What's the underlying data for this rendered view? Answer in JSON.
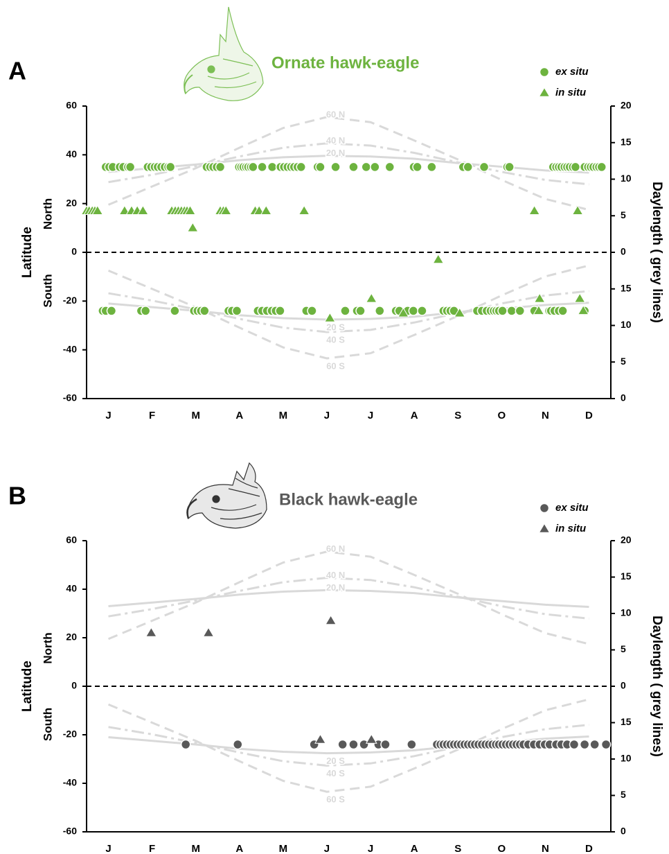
{
  "chart_data": [
    {
      "type": "scatter",
      "panel": "A",
      "title": "Ornate hawk-eagle",
      "title_color": "#6db33f",
      "y_label": "Latitude",
      "north_label": "North",
      "south_label": "South",
      "y2_label": "Daylength ( grey lines)",
      "categories": [
        "J",
        "F",
        "M",
        "A",
        "M",
        "J",
        "J",
        "A",
        "S",
        "O",
        "N",
        "D"
      ],
      "xlim": [
        0,
        12
      ],
      "ylim": [
        -60,
        60
      ],
      "yticks": [
        -60,
        -40,
        -20,
        0,
        20,
        40,
        60
      ],
      "reference_line": 0,
      "y2lim": [
        0,
        20
      ],
      "y2ticks": [
        0,
        5,
        10,
        15,
        20
      ],
      "y3lim": [
        0,
        20
      ],
      "y3ticks": [
        0,
        5,
        10,
        15
      ],
      "curves": [
        {
          "name": "60 N",
          "axis": "y2",
          "style": "dash",
          "color": "#d9d9d9",
          "values": [
            6.5,
            9,
            11.5,
            14.3,
            17,
            18.5,
            17.8,
            15.3,
            12.7,
            9.9,
            7.3,
            5.8
          ]
        },
        {
          "name": "40 N",
          "axis": "y2",
          "style": "dashdot",
          "color": "#d9d9d9",
          "values": [
            9.6,
            10.6,
            11.8,
            13.1,
            14.3,
            14.9,
            14.6,
            13.6,
            12.3,
            11,
            9.9,
            9.3
          ]
        },
        {
          "name": "20 N",
          "axis": "y2",
          "style": "solid",
          "color": "#d9d9d9",
          "values": [
            11,
            11.5,
            12,
            12.6,
            13,
            13.2,
            13.1,
            12.8,
            12.2,
            11.7,
            11.2,
            10.9
          ]
        },
        {
          "name": "20 S",
          "axis": "y3",
          "style": "solid",
          "color": "#d9d9d9",
          "values": [
            13,
            12.5,
            12,
            11.4,
            11,
            10.8,
            10.9,
            11.2,
            11.8,
            12.3,
            12.8,
            13.1
          ]
        },
        {
          "name": "40 S",
          "axis": "y3",
          "style": "dashdot",
          "color": "#d9d9d9",
          "values": [
            14.4,
            13.4,
            12.2,
            10.9,
            9.7,
            9.1,
            9.4,
            10.4,
            11.7,
            13,
            14.1,
            14.7
          ]
        },
        {
          "name": "60 S",
          "axis": "y3",
          "style": "dash",
          "color": "#d9d9d9",
          "values": [
            17.5,
            15,
            12.5,
            9.7,
            7,
            5.5,
            6.2,
            8.7,
            11.3,
            14.1,
            16.7,
            18.2
          ]
        }
      ],
      "series": [
        {
          "name": "ex situ",
          "marker": "circle",
          "color": "#6db33f",
          "x": [
            0.44,
            0.52,
            0.6,
            0.76,
            0.84,
            0.95,
            1.0,
            1.4,
            1.48,
            1.56,
            1.63,
            1.71,
            1.79,
            1.87,
            1.92,
            2.75,
            2.83,
            2.9,
            2.98,
            3.06,
            3.49,
            3.54,
            3.59,
            3.65,
            3.7,
            3.76,
            3.81,
            4.02,
            4.25,
            4.44,
            4.52,
            4.6,
            4.68,
            4.75,
            4.83,
            4.91,
            5.29,
            5.35,
            5.7,
            6.11,
            6.4,
            6.6,
            6.94,
            7.49,
            7.57,
            7.9,
            8.62,
            8.73,
            9.1,
            9.63,
            9.68,
            10.68,
            10.75,
            10.81,
            10.87,
            10.94,
            11.0,
            11.06,
            11.13,
            11.19,
            11.4,
            11.48,
            11.54,
            11.6,
            11.67,
            11.73,
            11.79,
            0.37,
            0.44,
            0.57,
            1.25,
            1.35,
            2.02,
            2.46,
            2.54,
            2.62,
            2.7,
            3.25,
            3.33,
            3.44,
            3.92,
            4.02,
            4.13,
            4.24,
            4.33,
            4.43,
            5.03,
            5.16,
            5.92,
            6.19,
            6.27,
            6.71,
            7.08,
            7.16,
            7.35,
            7.48,
            7.68,
            8.17,
            8.25,
            8.33,
            8.41,
            8.94,
            9.05,
            9.16,
            9.25,
            9.32,
            9.38,
            9.44,
            9.52,
            9.73,
            9.92,
            10.25,
            10.59,
            10.63,
            10.71,
            10.81,
            10.9,
            11.4
          ],
          "values": [
            35,
            35,
            35,
            35,
            35,
            35,
            35,
            35,
            35,
            35,
            35,
            35,
            35,
            35,
            35,
            35,
            35,
            35,
            35,
            35,
            35,
            35,
            35,
            35,
            35,
            35,
            35,
            35,
            35,
            35,
            35,
            35,
            35,
            35,
            35,
            35,
            35,
            35,
            35,
            35,
            35,
            35,
            35,
            35,
            35,
            35,
            35,
            35,
            35,
            35,
            35,
            35,
            35,
            35,
            35,
            35,
            35,
            35,
            35,
            35,
            35,
            35,
            35,
            35,
            35,
            35,
            35,
            -24,
            -24,
            -24,
            -24,
            -24,
            -24,
            -24,
            -24,
            -24,
            -24,
            -24,
            -24,
            -24,
            -24,
            -24,
            -24,
            -24,
            -24,
            -24,
            -24,
            -24,
            -24,
            -24,
            -24,
            -24,
            -24,
            -24,
            -24,
            -24,
            -24,
            -24,
            -24,
            -24,
            -24,
            -24,
            -24,
            -24,
            -24,
            -24,
            -24,
            -24,
            -24,
            -24,
            -24,
            -24,
            -24,
            -24,
            -24,
            -24,
            -24,
            -24
          ]
        },
        {
          "name": "in situ",
          "marker": "triangle",
          "color": "#6db33f",
          "x": [
            0,
            0.06,
            0.13,
            0.19,
            0.25,
            0.87,
            1.03,
            1.16,
            1.29,
            1.95,
            2.03,
            2.1,
            2.17,
            2.24,
            2.3,
            2.37,
            2.43,
            3.06,
            3.13,
            3.19,
            3.86,
            3.95,
            4.11,
            4.98,
            10.25,
            11.24,
            8.05,
            5.57,
            6.52,
            7.25,
            8.54,
            10.35,
            10.37,
            11.29,
            11.37
          ],
          "values": [
            17,
            17,
            17,
            17,
            17,
            17,
            17,
            17,
            17,
            17,
            17,
            17,
            17,
            17,
            17,
            17,
            10,
            17,
            17,
            17,
            17,
            17,
            17,
            17,
            17,
            17,
            -3,
            -27,
            -19,
            -25,
            -25,
            -24,
            -19,
            -19,
            -24
          ]
        }
      ]
    },
    {
      "type": "scatter",
      "panel": "B",
      "title": "Black hawk-eagle",
      "title_color": "#595959",
      "y_label": "Latitude",
      "north_label": "North",
      "south_label": "South",
      "y2_label": "Daylength ( grey lines)",
      "categories": [
        "J",
        "F",
        "M",
        "A",
        "M",
        "J",
        "J",
        "A",
        "S",
        "O",
        "N",
        "D"
      ],
      "xlim": [
        0,
        12
      ],
      "ylim": [
        -60,
        60
      ],
      "yticks": [
        -60,
        -40,
        -20,
        0,
        20,
        40,
        60
      ],
      "reference_line": 0,
      "y2lim": [
        0,
        20
      ],
      "y2ticks": [
        0,
        5,
        10,
        15,
        20
      ],
      "y3lim": [
        0,
        20
      ],
      "y3ticks": [
        0,
        5,
        10,
        15
      ],
      "curves": [
        {
          "name": "60 N",
          "axis": "y2",
          "style": "dash",
          "color": "#d9d9d9",
          "values": [
            6.5,
            9,
            11.5,
            14.3,
            17,
            18.5,
            17.8,
            15.3,
            12.7,
            9.9,
            7.3,
            5.8
          ]
        },
        {
          "name": "40 N",
          "axis": "y2",
          "style": "dashdot",
          "color": "#d9d9d9",
          "values": [
            9.6,
            10.6,
            11.8,
            13.1,
            14.3,
            14.9,
            14.6,
            13.6,
            12.3,
            11,
            9.9,
            9.3
          ]
        },
        {
          "name": "20 N",
          "axis": "y2",
          "style": "solid",
          "color": "#d9d9d9",
          "values": [
            11,
            11.5,
            12,
            12.6,
            13,
            13.2,
            13.1,
            12.8,
            12.2,
            11.7,
            11.2,
            10.9
          ]
        },
        {
          "name": "20 S",
          "axis": "y3",
          "style": "solid",
          "color": "#d9d9d9",
          "values": [
            13,
            12.5,
            12,
            11.4,
            11,
            10.8,
            10.9,
            11.2,
            11.8,
            12.3,
            12.8,
            13.1
          ]
        },
        {
          "name": "40 S",
          "axis": "y3",
          "style": "dashdot",
          "color": "#d9d9d9",
          "values": [
            14.4,
            13.4,
            12.2,
            10.9,
            9.7,
            9.1,
            9.4,
            10.4,
            11.7,
            13,
            14.1,
            14.7
          ]
        },
        {
          "name": "60 S",
          "axis": "y3",
          "style": "dash",
          "color": "#d9d9d9",
          "values": [
            17.5,
            15,
            12.5,
            9.7,
            7,
            5.5,
            6.2,
            8.7,
            11.3,
            14.1,
            16.7,
            18.2
          ]
        }
      ],
      "series": [
        {
          "name": "ex situ",
          "marker": "circle",
          "color": "#595959",
          "x": [
            2.27,
            3.46,
            5.21,
            5.86,
            6.11,
            6.35,
            6.68,
            6.84,
            7.44,
            8.02,
            8.1,
            8.17,
            8.25,
            8.33,
            8.41,
            8.49,
            8.57,
            8.65,
            8.73,
            8.81,
            8.89,
            8.97,
            9.05,
            9.13,
            9.21,
            9.29,
            9.37,
            9.44,
            9.52,
            9.6,
            9.68,
            9.76,
            9.84,
            9.92,
            10.0,
            10.11,
            10.24,
            10.37,
            10.49,
            10.6,
            10.75,
            10.87,
            11.0,
            11.16,
            11.4,
            11.63,
            11.89
          ],
          "values": [
            -24,
            -24,
            -24,
            -24,
            -24,
            -24,
            -24,
            -24,
            -24,
            -24,
            -24,
            -24,
            -24,
            -24,
            -24,
            -24,
            -24,
            -24,
            -24,
            -24,
            -24,
            -24,
            -24,
            -24,
            -24,
            -24,
            -24,
            -24,
            -24,
            -24,
            -24,
            -24,
            -24,
            -24,
            -24,
            -24,
            -24,
            -24,
            -24,
            -24,
            -24,
            -24,
            -24,
            -24,
            -24,
            -24,
            -24
          ]
        },
        {
          "name": "in situ",
          "marker": "triangle",
          "color": "#595959",
          "x": [
            1.48,
            2.79,
            5.59,
            5.35,
            6.52
          ],
          "values": [
            22,
            22,
            27,
            -22,
            -22
          ]
        }
      ]
    }
  ]
}
